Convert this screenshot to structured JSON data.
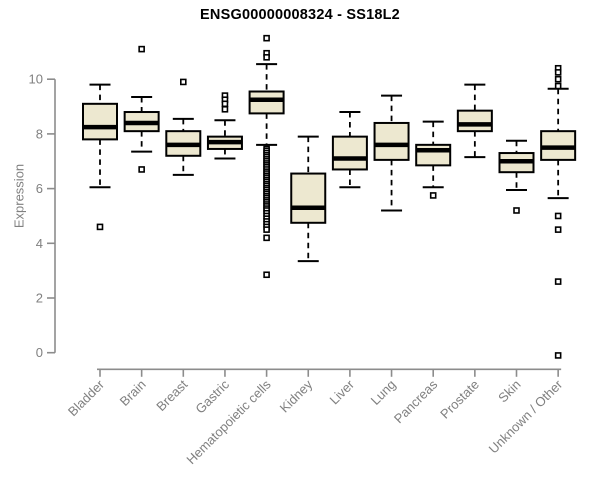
{
  "page": {
    "background": "#ffffff"
  },
  "chart_data": {
    "type": "boxplot",
    "title": "ENSG00000008324 - SS18L2",
    "xlabel": "",
    "ylabel": "Expression",
    "ylim": [
      0,
      10
    ],
    "yticks": [
      0,
      2,
      4,
      6,
      8,
      10
    ],
    "grid": false,
    "legend": "none",
    "colors": {
      "box_fill": "#EDE8D0",
      "box_border": "#000000",
      "median": "#000000",
      "whisker": "#000000",
      "axis_line": "#8C8C8C",
      "tick_label": "#808080",
      "title_text": "#000000",
      "background": "#FFFFFF"
    },
    "categories": [
      "Bladder",
      "Brain",
      "Breast",
      "Gastric",
      "Hematopoietic cells",
      "Kidney",
      "Liver",
      "Lung",
      "Pancreas",
      "Prostate",
      "Skin",
      "Unknown / Other"
    ],
    "series": [
      {
        "label": "Bladder",
        "whisker_low": 6.05,
        "q1": 7.8,
        "median": 8.25,
        "q3": 9.1,
        "whisker_high": 9.8,
        "outliers": [
          4.6
        ]
      },
      {
        "label": "Brain",
        "whisker_low": 7.35,
        "q1": 8.1,
        "median": 8.4,
        "q3": 8.8,
        "whisker_high": 9.35,
        "outliers": [
          11.1,
          6.7
        ]
      },
      {
        "label": "Breast",
        "whisker_low": 6.5,
        "q1": 7.2,
        "median": 7.6,
        "q3": 8.1,
        "whisker_high": 8.55,
        "outliers": [
          9.9
        ]
      },
      {
        "label": "Gastric",
        "whisker_low": 7.1,
        "q1": 7.45,
        "median": 7.7,
        "q3": 7.9,
        "whisker_high": 8.5,
        "outliers": [
          9.4,
          9.25,
          9.1,
          8.9
        ]
      },
      {
        "label": "Hematopoietic cells",
        "whisker_low": 7.6,
        "q1": 8.75,
        "median": 9.25,
        "q3": 9.55,
        "whisker_high": 10.55,
        "outliers": [
          11.5,
          10.95,
          10.8,
          7.45,
          7.38,
          7.3,
          7.22,
          7.15,
          7.07,
          7.0,
          6.92,
          6.85,
          6.78,
          6.7,
          6.62,
          6.55,
          6.47,
          6.4,
          6.32,
          6.25,
          6.17,
          6.1,
          6.02,
          5.95,
          5.87,
          5.8,
          5.72,
          5.65,
          5.57,
          5.5,
          5.42,
          5.35,
          5.27,
          5.2,
          5.1,
          5.0,
          4.9,
          4.8,
          4.7,
          4.6,
          4.5,
          4.2,
          2.85
        ]
      },
      {
        "label": "Kidney",
        "whisker_low": 3.35,
        "q1": 4.75,
        "median": 5.3,
        "q3": 6.55,
        "whisker_high": 7.9,
        "outliers": []
      },
      {
        "label": "Liver",
        "whisker_low": 6.05,
        "q1": 6.7,
        "median": 7.1,
        "q3": 7.9,
        "whisker_high": 8.8,
        "outliers": []
      },
      {
        "label": "Lung",
        "whisker_low": 5.2,
        "q1": 7.05,
        "median": 7.6,
        "q3": 8.4,
        "whisker_high": 9.4,
        "outliers": []
      },
      {
        "label": "Pancreas",
        "whisker_low": 6.05,
        "q1": 6.85,
        "median": 7.4,
        "q3": 7.6,
        "whisker_high": 8.45,
        "outliers": [
          5.75
        ]
      },
      {
        "label": "Prostate",
        "whisker_low": 7.15,
        "q1": 8.1,
        "median": 8.35,
        "q3": 8.85,
        "whisker_high": 9.8,
        "outliers": []
      },
      {
        "label": "Skin",
        "whisker_low": 5.95,
        "q1": 6.6,
        "median": 7.0,
        "q3": 7.3,
        "whisker_high": 7.75,
        "outliers": [
          5.2
        ]
      },
      {
        "label": "Unknown / Other",
        "whisker_low": 5.65,
        "q1": 7.05,
        "median": 7.5,
        "q3": 8.1,
        "whisker_high": 9.65,
        "outliers": [
          10.4,
          10.25,
          10.0,
          9.75,
          5.0,
          4.5,
          2.6,
          -0.1
        ]
      }
    ]
  }
}
